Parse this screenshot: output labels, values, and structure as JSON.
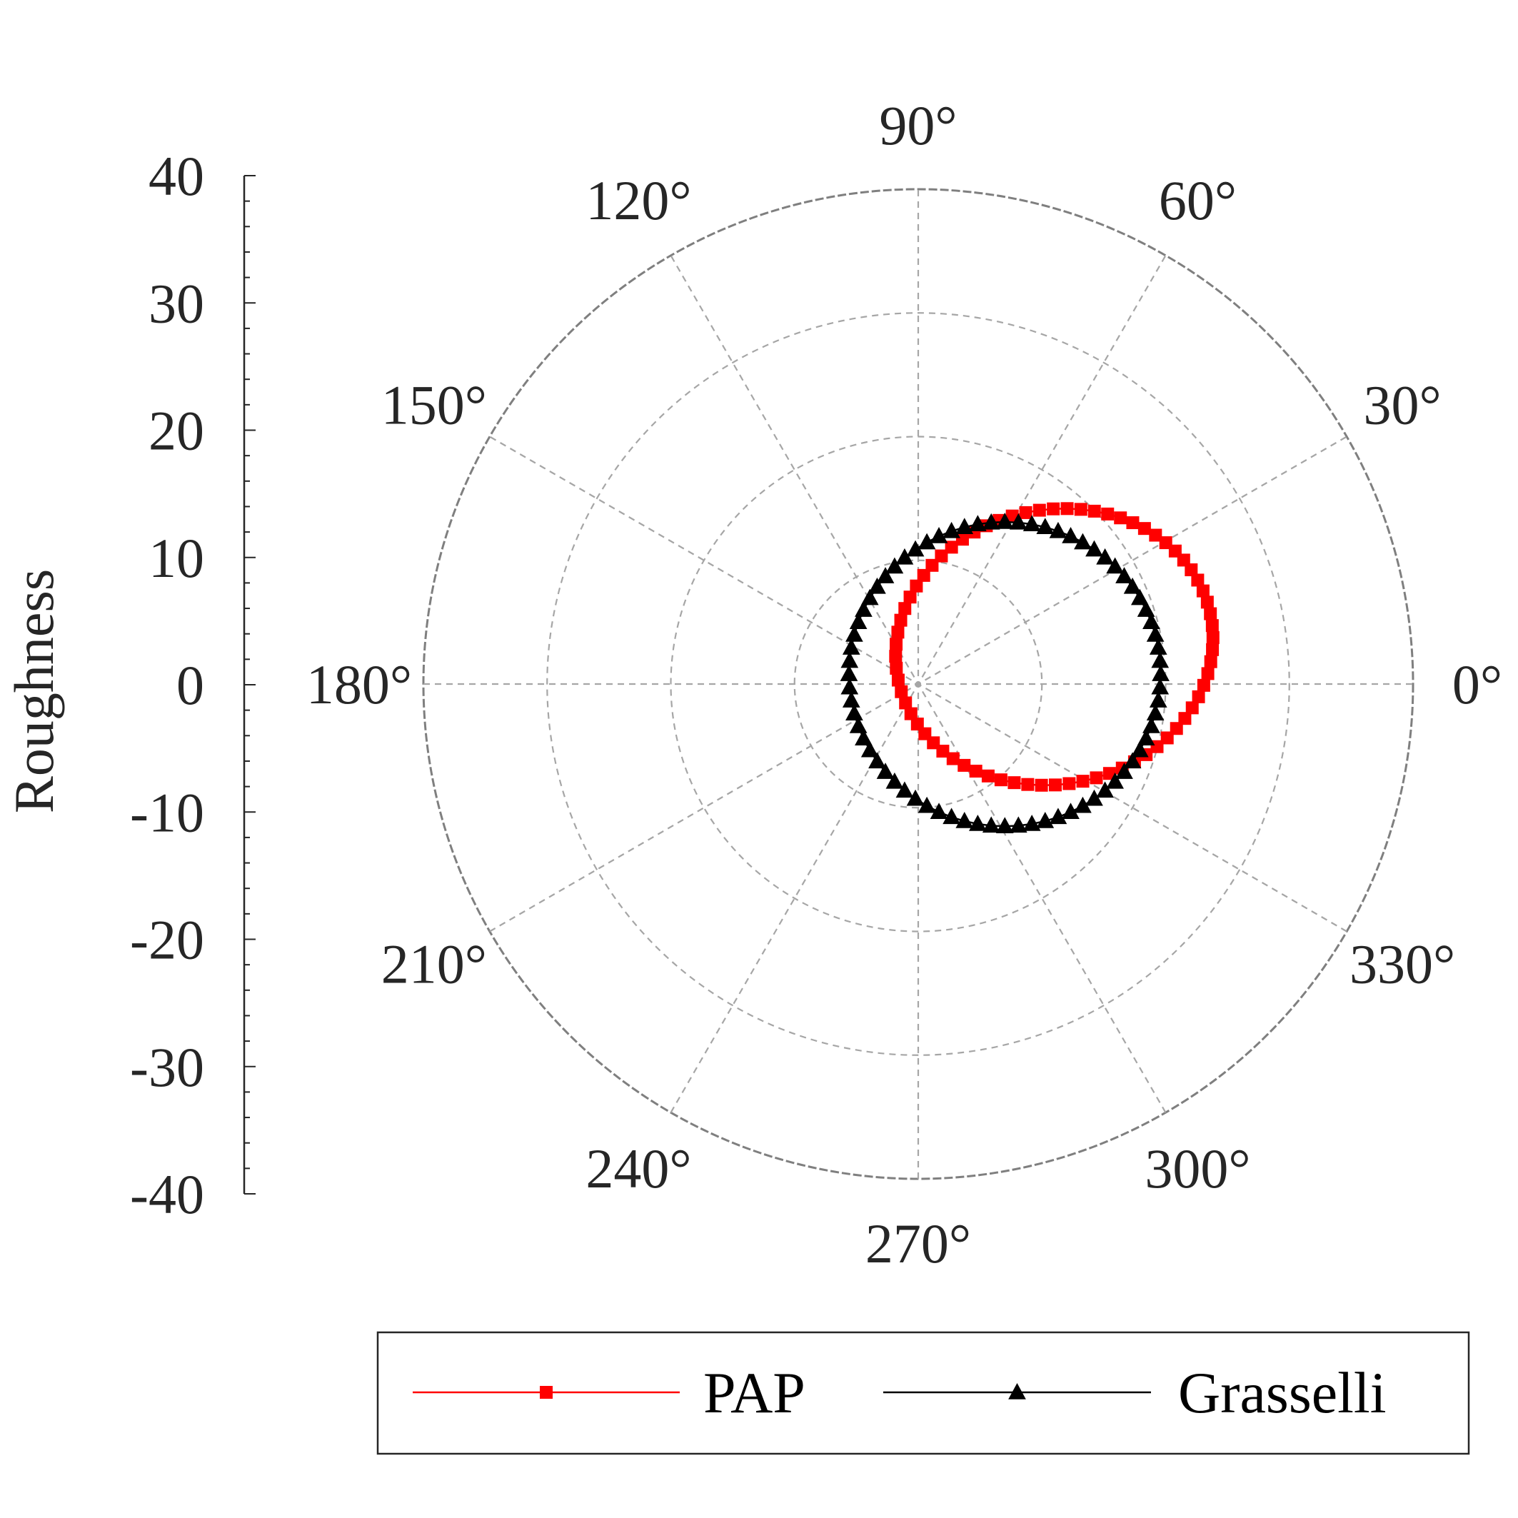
{
  "chart_data": {
    "type": "polar-line",
    "ylabel": "Roughness",
    "r_ticks": [
      40,
      30,
      20,
      10,
      0,
      -10,
      -20,
      -30,
      -40
    ],
    "r_tick_labels": [
      "40",
      "30",
      "20",
      "10",
      "0",
      "-10",
      "-20",
      "-30",
      "-40"
    ],
    "theta_tick_labels": [
      "0°",
      "30°",
      "60°",
      "90°",
      "120°",
      "150°",
      "180°",
      "210°",
      "240°",
      "270°",
      "300°",
      "330°"
    ],
    "radial_axis_max": 40,
    "radial_rings": [
      10,
      20,
      30,
      40
    ],
    "grid": true,
    "legend_position": "bottom",
    "theta_step_deg": 5,
    "series": [
      {
        "name": "PAP",
        "color": "#ff0000",
        "marker": "square",
        "center": [
          11.0,
          3.0
        ],
        "semi_axes": [
          12.9,
          11.1
        ],
        "rotation_deg": 12
      },
      {
        "name": "Grasselli",
        "color": "#000000",
        "marker": "triangle",
        "center": [
          7.0,
          0.8
        ],
        "semi_axes": [
          12.6,
          12.3
        ],
        "rotation_deg": 0
      }
    ],
    "legend": {
      "entries": [
        "PAP",
        "Grasselli"
      ]
    }
  }
}
